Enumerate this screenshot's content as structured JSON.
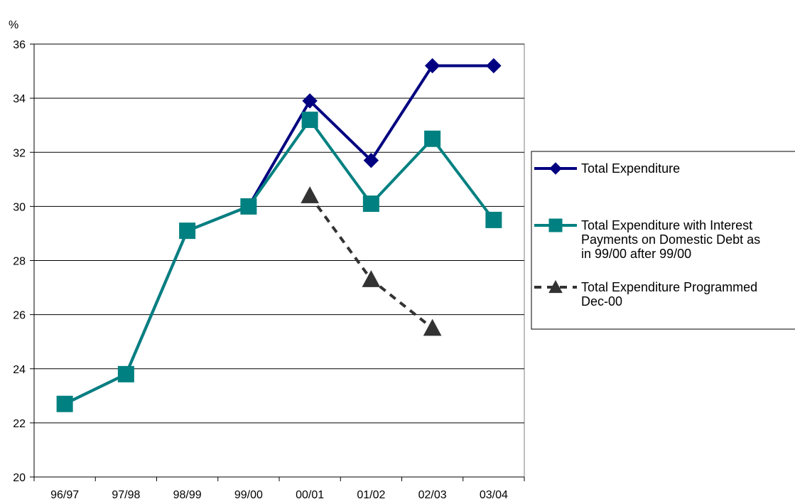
{
  "chart_data": {
    "type": "line",
    "ylabel": "%",
    "ylim": [
      20,
      36
    ],
    "yticks": [
      "20",
      "22",
      "24",
      "26",
      "28",
      "30",
      "32",
      "34",
      "36"
    ],
    "categories": [
      "96/97",
      "97/98",
      "98/99",
      "99/00",
      "00/01",
      "01/02",
      "02/03",
      "03/04"
    ],
    "grid": "horizontal",
    "legend_position": "right",
    "series": [
      {
        "name": "Total Expenditure",
        "legend_lines": [
          "Total Expenditure"
        ],
        "values": [
          22.7,
          23.8,
          29.1,
          30.0,
          33.9,
          31.7,
          35.2,
          35.2
        ],
        "color": "#000080",
        "marker": "diamond",
        "dash": "solid"
      },
      {
        "name": "Total Expenditure with Interest Payments on Domestic Debt as in 99/00 after 99/00",
        "legend_lines": [
          "Total Expenditure with Interest",
          "Payments on Domestic Debt as",
          "in 99/00 after 99/00"
        ],
        "values": [
          22.7,
          23.8,
          29.1,
          30.0,
          33.2,
          30.1,
          32.5,
          29.5
        ],
        "color": "#008080",
        "marker": "square",
        "dash": "solid"
      },
      {
        "name": "Total Expenditure Programmed Dec-00",
        "legend_lines": [
          "Total Expenditure Programmed",
          "Dec-00"
        ],
        "values": [
          null,
          null,
          null,
          null,
          30.4,
          27.3,
          25.5,
          null
        ],
        "color": "#333333",
        "marker": "triangle",
        "dash": "dashed"
      }
    ]
  }
}
